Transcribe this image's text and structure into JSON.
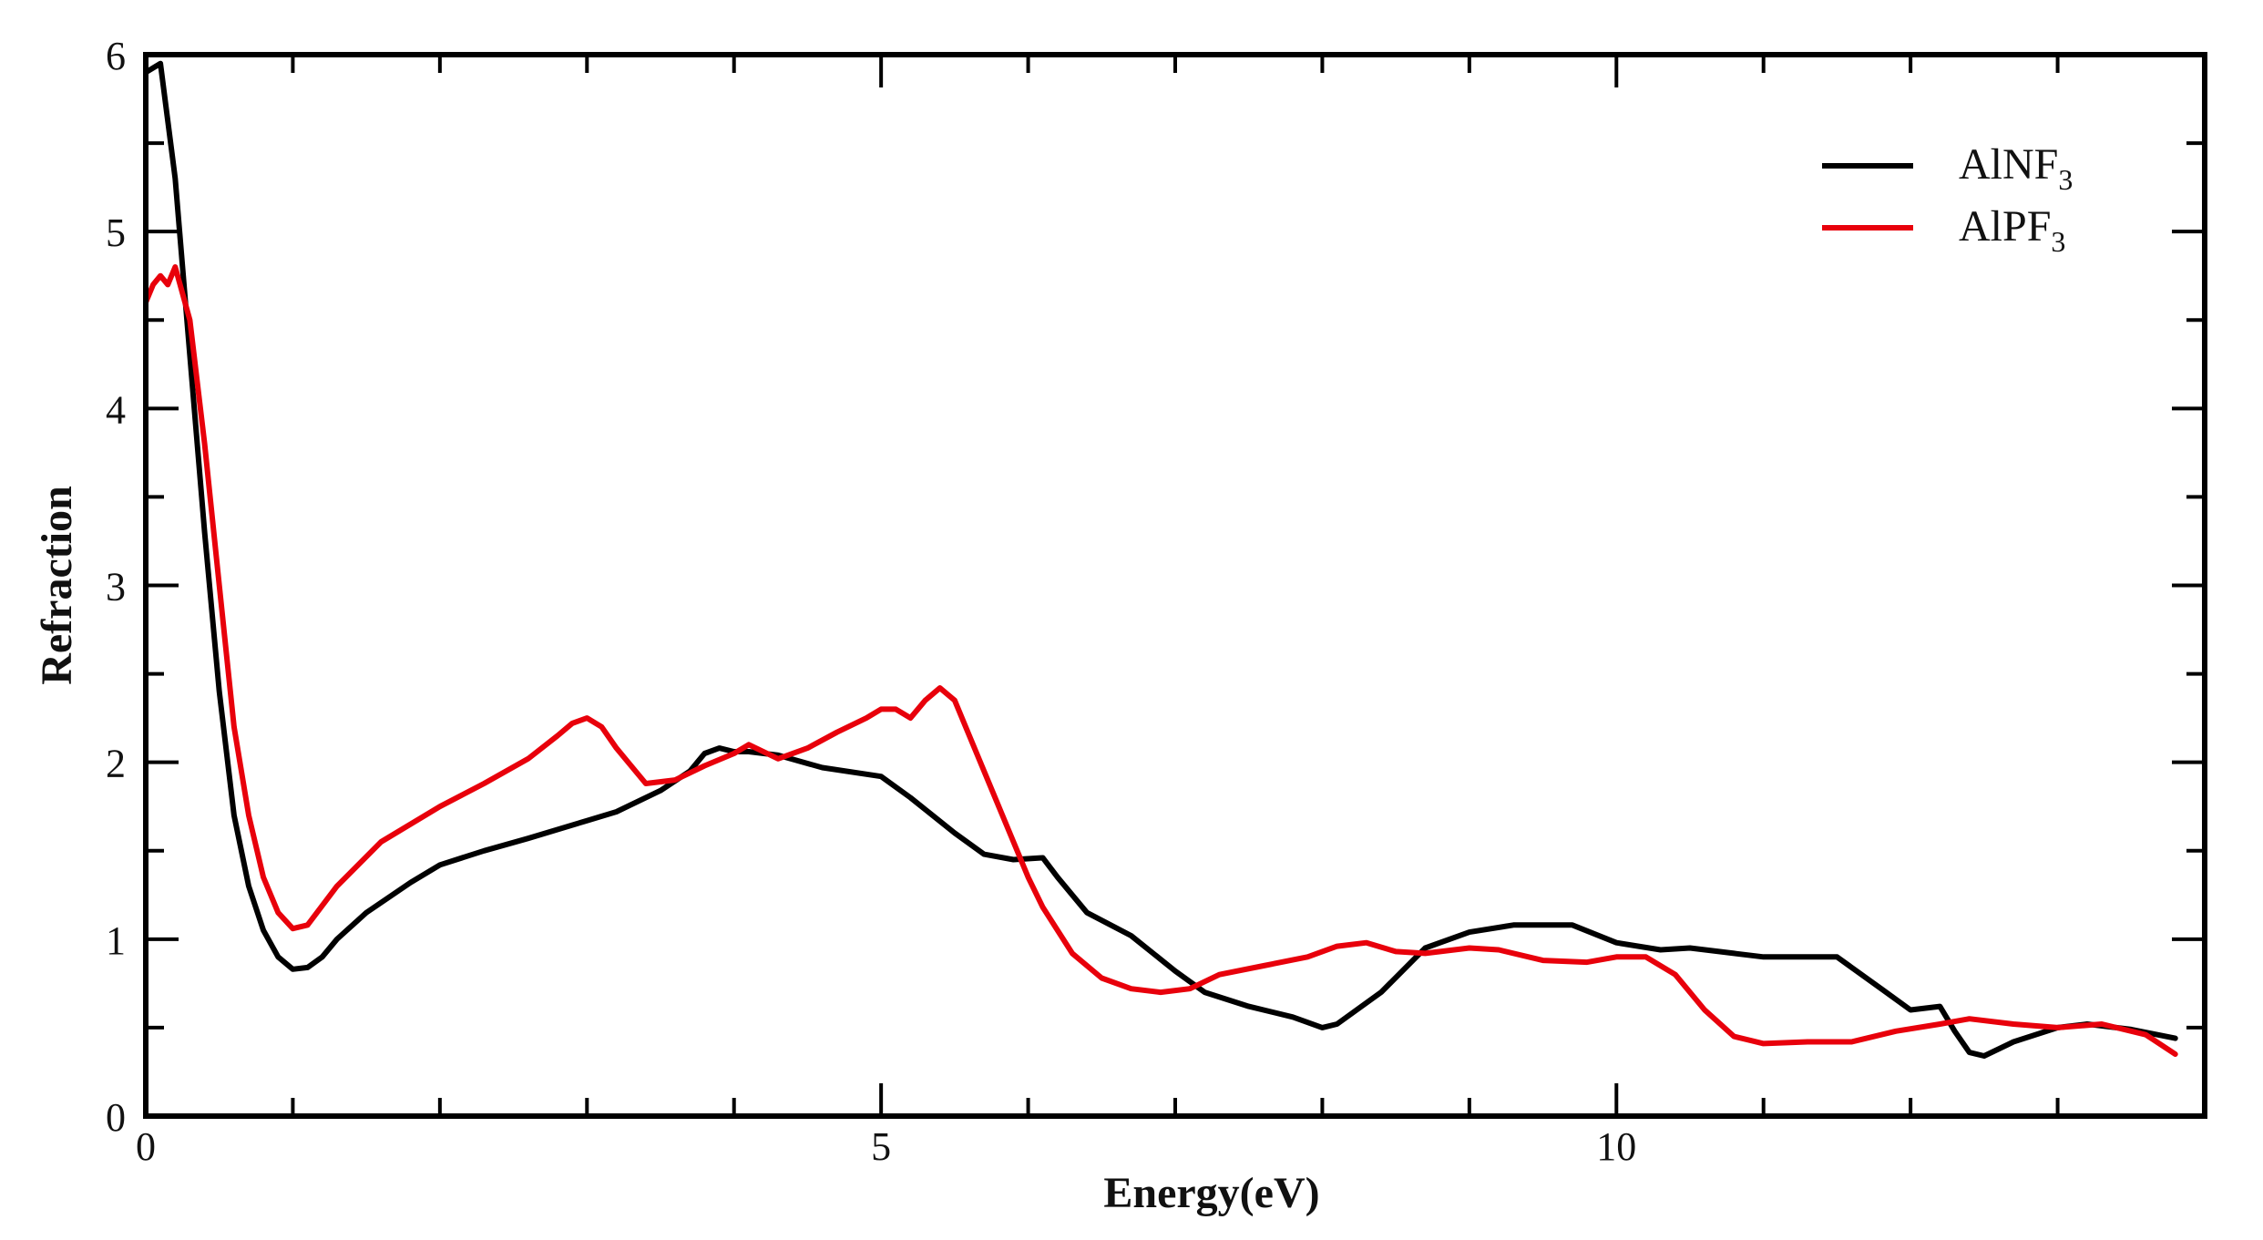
{
  "chart_data": {
    "type": "line",
    "xlabel": "Energy(eV)",
    "ylabel": "Refraction",
    "xlim": [
      0,
      14
    ],
    "ylim": [
      0,
      6
    ],
    "xticks": [
      0,
      5,
      10
    ],
    "yticks": [
      0,
      1,
      2,
      3,
      4,
      5,
      6
    ],
    "grid": false,
    "legend_position": "top-right",
    "series": [
      {
        "name": "AlNF3",
        "name_main": "AlNF",
        "name_sub": "3",
        "color": "#000000",
        "points": [
          [
            0,
            5.9
          ],
          [
            0.1,
            5.95
          ],
          [
            0.2,
            5.3
          ],
          [
            0.3,
            4.3
          ],
          [
            0.4,
            3.3
          ],
          [
            0.5,
            2.4
          ],
          [
            0.6,
            1.7
          ],
          [
            0.7,
            1.3
          ],
          [
            0.8,
            1.05
          ],
          [
            0.9,
            0.9
          ],
          [
            1.0,
            0.83
          ],
          [
            1.1,
            0.84
          ],
          [
            1.2,
            0.9
          ],
          [
            1.3,
            1.0
          ],
          [
            1.5,
            1.15
          ],
          [
            1.8,
            1.32
          ],
          [
            2.0,
            1.42
          ],
          [
            2.3,
            1.5
          ],
          [
            2.6,
            1.57
          ],
          [
            3.0,
            1.67
          ],
          [
            3.2,
            1.72
          ],
          [
            3.5,
            1.84
          ],
          [
            3.7,
            1.95
          ],
          [
            3.8,
            2.05
          ],
          [
            3.9,
            2.08
          ],
          [
            4.0,
            2.06
          ],
          [
            4.1,
            2.06
          ],
          [
            4.3,
            2.04
          ],
          [
            4.6,
            1.97
          ],
          [
            5.0,
            1.92
          ],
          [
            5.2,
            1.8
          ],
          [
            5.5,
            1.6
          ],
          [
            5.7,
            1.48
          ],
          [
            5.9,
            1.45
          ],
          [
            6.1,
            1.46
          ],
          [
            6.2,
            1.35
          ],
          [
            6.4,
            1.15
          ],
          [
            6.7,
            1.02
          ],
          [
            7.0,
            0.82
          ],
          [
            7.2,
            0.7
          ],
          [
            7.5,
            0.62
          ],
          [
            7.8,
            0.56
          ],
          [
            8.0,
            0.5
          ],
          [
            8.1,
            0.52
          ],
          [
            8.4,
            0.7
          ],
          [
            8.7,
            0.95
          ],
          [
            9.0,
            1.04
          ],
          [
            9.3,
            1.08
          ],
          [
            9.7,
            1.08
          ],
          [
            10.0,
            0.98
          ],
          [
            10.3,
            0.94
          ],
          [
            10.5,
            0.95
          ],
          [
            10.8,
            0.92
          ],
          [
            11.0,
            0.9
          ],
          [
            11.5,
            0.9
          ],
          [
            11.8,
            0.72
          ],
          [
            12.0,
            0.6
          ],
          [
            12.2,
            0.62
          ],
          [
            12.3,
            0.48
          ],
          [
            12.4,
            0.36
          ],
          [
            12.5,
            0.34
          ],
          [
            12.7,
            0.42
          ],
          [
            13.0,
            0.5
          ],
          [
            13.2,
            0.52
          ],
          [
            13.5,
            0.49
          ],
          [
            13.8,
            0.44
          ]
        ]
      },
      {
        "name": "AlPF3",
        "name_main": "AlPF",
        "name_sub": "3",
        "color": "#e8000b",
        "points": [
          [
            0,
            4.6
          ],
          [
            0.05,
            4.7
          ],
          [
            0.1,
            4.75
          ],
          [
            0.15,
            4.7
          ],
          [
            0.2,
            4.8
          ],
          [
            0.3,
            4.5
          ],
          [
            0.4,
            3.8
          ],
          [
            0.5,
            3.0
          ],
          [
            0.6,
            2.2
          ],
          [
            0.7,
            1.7
          ],
          [
            0.8,
            1.35
          ],
          [
            0.9,
            1.15
          ],
          [
            1.0,
            1.06
          ],
          [
            1.1,
            1.08
          ],
          [
            1.3,
            1.3
          ],
          [
            1.6,
            1.55
          ],
          [
            2.0,
            1.75
          ],
          [
            2.3,
            1.88
          ],
          [
            2.6,
            2.02
          ],
          [
            2.8,
            2.15
          ],
          [
            2.9,
            2.22
          ],
          [
            3.0,
            2.25
          ],
          [
            3.1,
            2.2
          ],
          [
            3.2,
            2.08
          ],
          [
            3.3,
            1.98
          ],
          [
            3.4,
            1.88
          ],
          [
            3.6,
            1.9
          ],
          [
            3.8,
            1.98
          ],
          [
            4.0,
            2.05
          ],
          [
            4.1,
            2.1
          ],
          [
            4.3,
            2.02
          ],
          [
            4.5,
            2.08
          ],
          [
            4.7,
            2.17
          ],
          [
            4.9,
            2.25
          ],
          [
            5.0,
            2.3
          ],
          [
            5.1,
            2.3
          ],
          [
            5.2,
            2.25
          ],
          [
            5.3,
            2.35
          ],
          [
            5.4,
            2.42
          ],
          [
            5.5,
            2.35
          ],
          [
            5.6,
            2.15
          ],
          [
            5.8,
            1.75
          ],
          [
            6.0,
            1.35
          ],
          [
            6.1,
            1.18
          ],
          [
            6.3,
            0.92
          ],
          [
            6.5,
            0.78
          ],
          [
            6.7,
            0.72
          ],
          [
            6.9,
            0.7
          ],
          [
            7.1,
            0.72
          ],
          [
            7.3,
            0.8
          ],
          [
            7.6,
            0.85
          ],
          [
            7.9,
            0.9
          ],
          [
            8.1,
            0.96
          ],
          [
            8.3,
            0.98
          ],
          [
            8.5,
            0.93
          ],
          [
            8.7,
            0.92
          ],
          [
            9.0,
            0.95
          ],
          [
            9.2,
            0.94
          ],
          [
            9.5,
            0.88
          ],
          [
            9.8,
            0.87
          ],
          [
            10.0,
            0.9
          ],
          [
            10.2,
            0.9
          ],
          [
            10.4,
            0.8
          ],
          [
            10.6,
            0.6
          ],
          [
            10.8,
            0.45
          ],
          [
            11.0,
            0.41
          ],
          [
            11.3,
            0.42
          ],
          [
            11.6,
            0.42
          ],
          [
            11.9,
            0.48
          ],
          [
            12.2,
            0.52
          ],
          [
            12.4,
            0.55
          ],
          [
            12.7,
            0.52
          ],
          [
            13.0,
            0.5
          ],
          [
            13.3,
            0.52
          ],
          [
            13.6,
            0.46
          ],
          [
            13.8,
            0.35
          ]
        ]
      }
    ]
  }
}
